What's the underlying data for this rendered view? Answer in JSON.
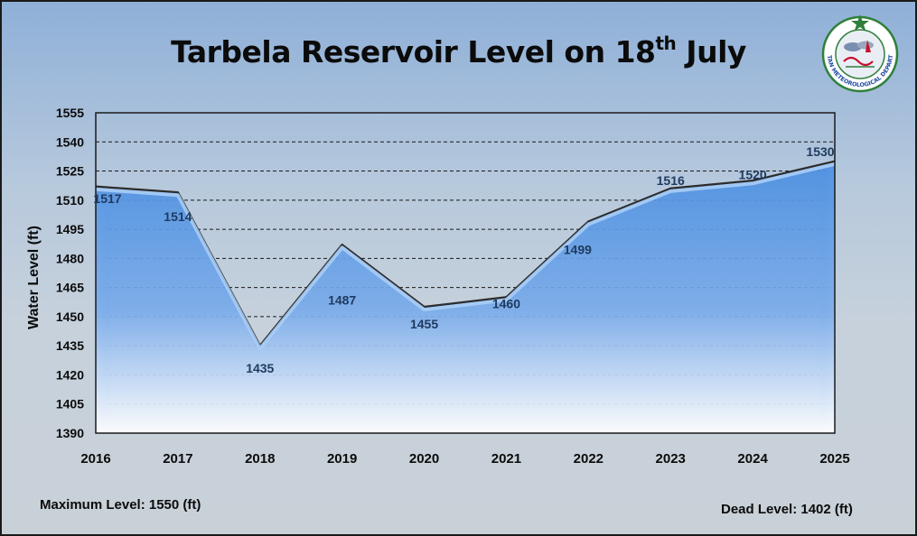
{
  "title": {
    "main": "Tarbela Reservoir Level on 18",
    "sup": "th",
    "tail": " July"
  },
  "logo": {
    "text": "PAKISTAN METEOROLOGICAL DEPARTMENT",
    "colors": {
      "ring": "#2f7f3a",
      "star": "#2f7f3a",
      "accent": "#c8102e"
    }
  },
  "footer": {
    "max_level": "Maximum Level: 1550 (ft)",
    "dead_level": "Dead Level: 1402 (ft)"
  },
  "chart_data": {
    "type": "area",
    "title": "Tarbela Reservoir Level on 18th July",
    "xlabel": "",
    "ylabel": "Water Level (ft)",
    "x": [
      "2016",
      "2017",
      "2018",
      "2019",
      "2020",
      "2021",
      "2022",
      "2023",
      "2024",
      "2025"
    ],
    "values": [
      1517,
      1514,
      1435,
      1487,
      1455,
      1460,
      1499,
      1516,
      1520,
      1530
    ],
    "ylim": [
      1390,
      1555
    ],
    "yticks": [
      1390,
      1405,
      1420,
      1435,
      1450,
      1465,
      1480,
      1495,
      1510,
      1525,
      1540,
      1555
    ],
    "grid": "horizontal dashed",
    "legend": "none",
    "colors": {
      "fill_top": "#4a8ee0",
      "fill_bottom": "#ffffff",
      "line": "#2c2c2c",
      "label": "#1f3a5f"
    }
  }
}
